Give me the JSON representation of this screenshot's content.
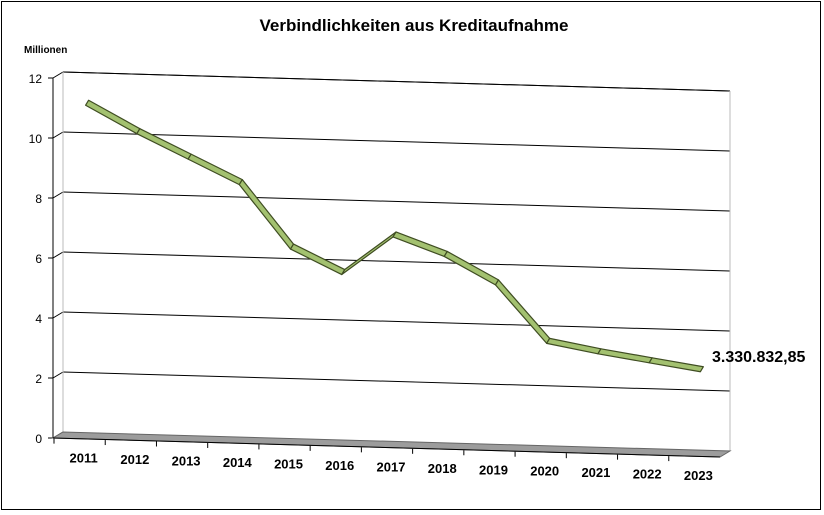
{
  "chart_data": {
    "type": "line",
    "title": "Verbindlichkeiten aus Kreditaufnahme",
    "ylabel": "Millionen",
    "xlabel": "",
    "categories": [
      "2011",
      "2012",
      "2013",
      "2014",
      "2015",
      "2016",
      "2017",
      "2018",
      "2019",
      "2020",
      "2021",
      "2022",
      "2023"
    ],
    "series": [
      {
        "values": [
          11.0,
          10.1,
          9.3,
          8.5,
          6.4,
          5.6,
          6.9,
          6.3,
          5.4,
          3.5,
          3.2,
          2.95,
          2.7
        ]
      }
    ],
    "y_ticks": [
      "0",
      "2",
      "4",
      "6",
      "8",
      "10",
      "12"
    ],
    "ylim": [
      0,
      12
    ],
    "grid": true,
    "perspective": "3d",
    "annotation": "3.330.832,85",
    "line_color": "#a3c170",
    "line_edge_color": "#3f4d22",
    "floor_color": "#9c9c9c"
  }
}
